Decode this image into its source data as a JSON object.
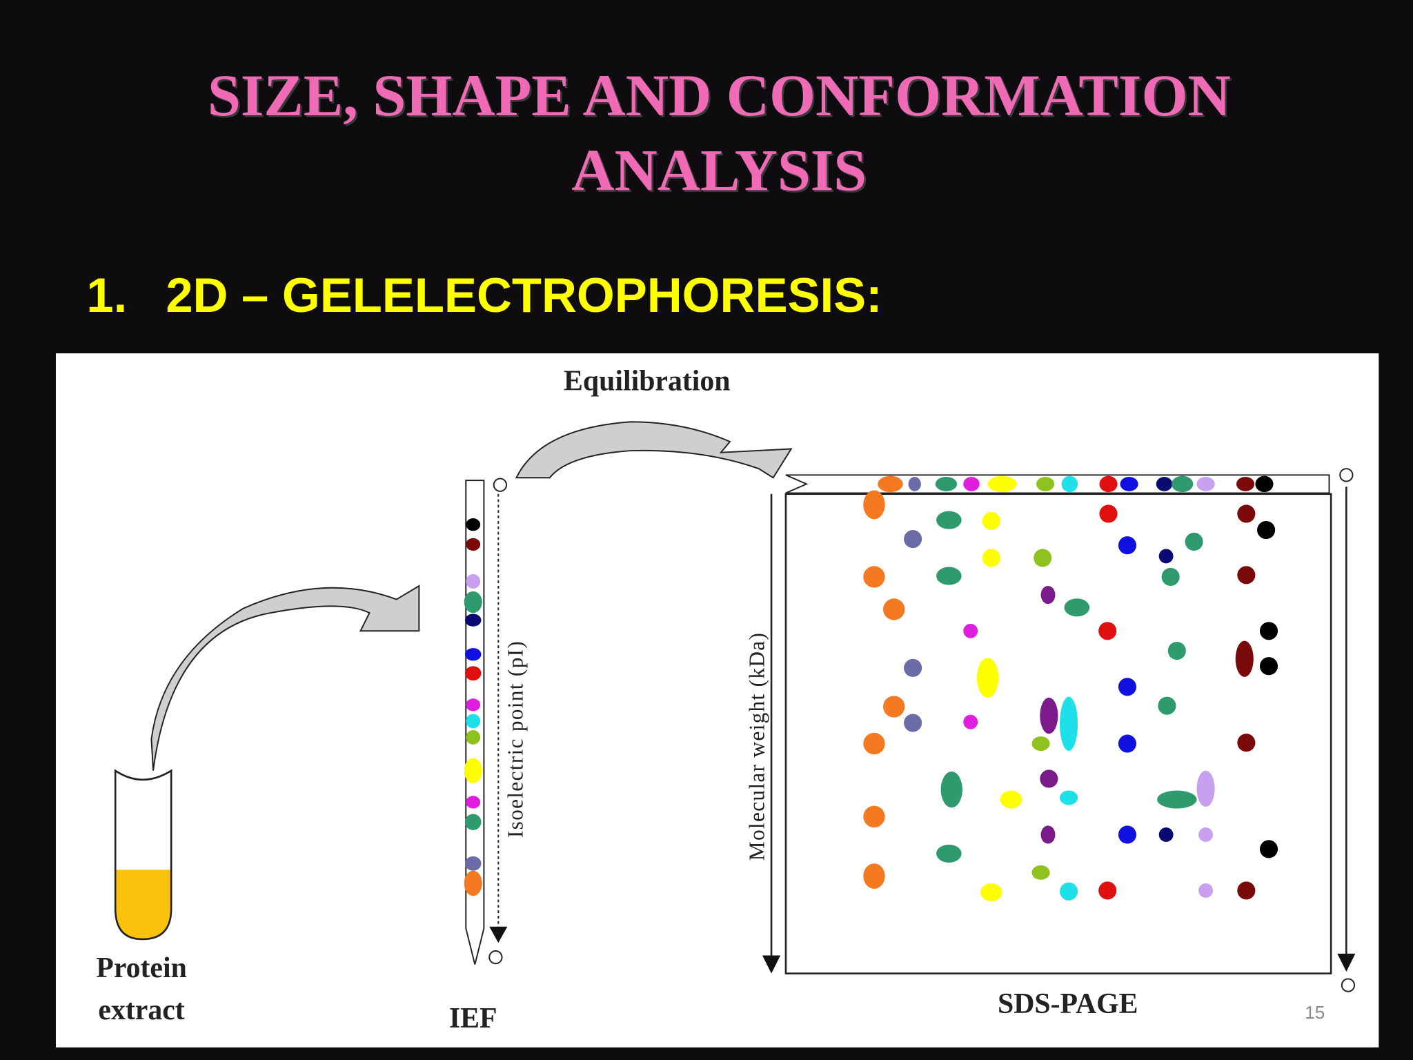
{
  "header": {
    "title_lines": [
      "SIZE, SHAPE AND CONFORMATION",
      "ANALYSIS"
    ]
  },
  "section": {
    "number": "1.",
    "heading": "2D – GELELECTROPHORESIS:"
  },
  "figure": {
    "equilibration_label": "Equilibration",
    "sample_label_lines": [
      "Protein",
      "extract"
    ],
    "ief_label": "IEF",
    "ief_axis_label": "Isoelectric point (pI)",
    "sds_label": "SDS-PAGE",
    "sds_axis_label": "Molecular weight (kDa)"
  },
  "footer": {
    "page_number": "15"
  }
}
